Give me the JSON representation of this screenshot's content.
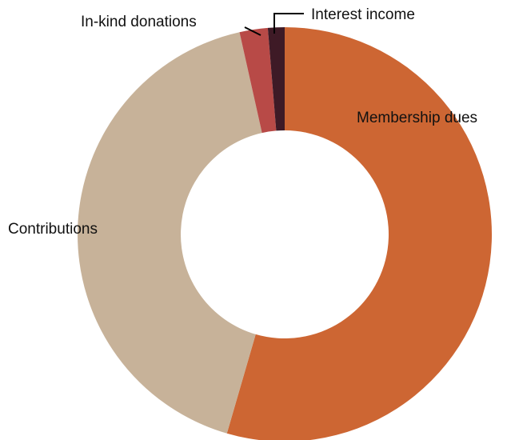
{
  "chart_data": {
    "type": "donut",
    "title": "",
    "categories": [
      "Membership dues",
      "Contributions",
      "In-kind donations",
      "Interest income"
    ],
    "values": [
      54.5,
      42.0,
      2.2,
      1.3
    ],
    "colors": [
      "#CD6633",
      "#C7B299",
      "#B84A47",
      "#3E1A26"
    ],
    "start_angle_deg": 0,
    "direction": "clockwise",
    "legend": "none",
    "labels": {
      "membership_dues": "Membership dues",
      "contributions": "Contributions",
      "in_kind_donations": "In-kind donations",
      "interest_income": "Interest income"
    }
  }
}
